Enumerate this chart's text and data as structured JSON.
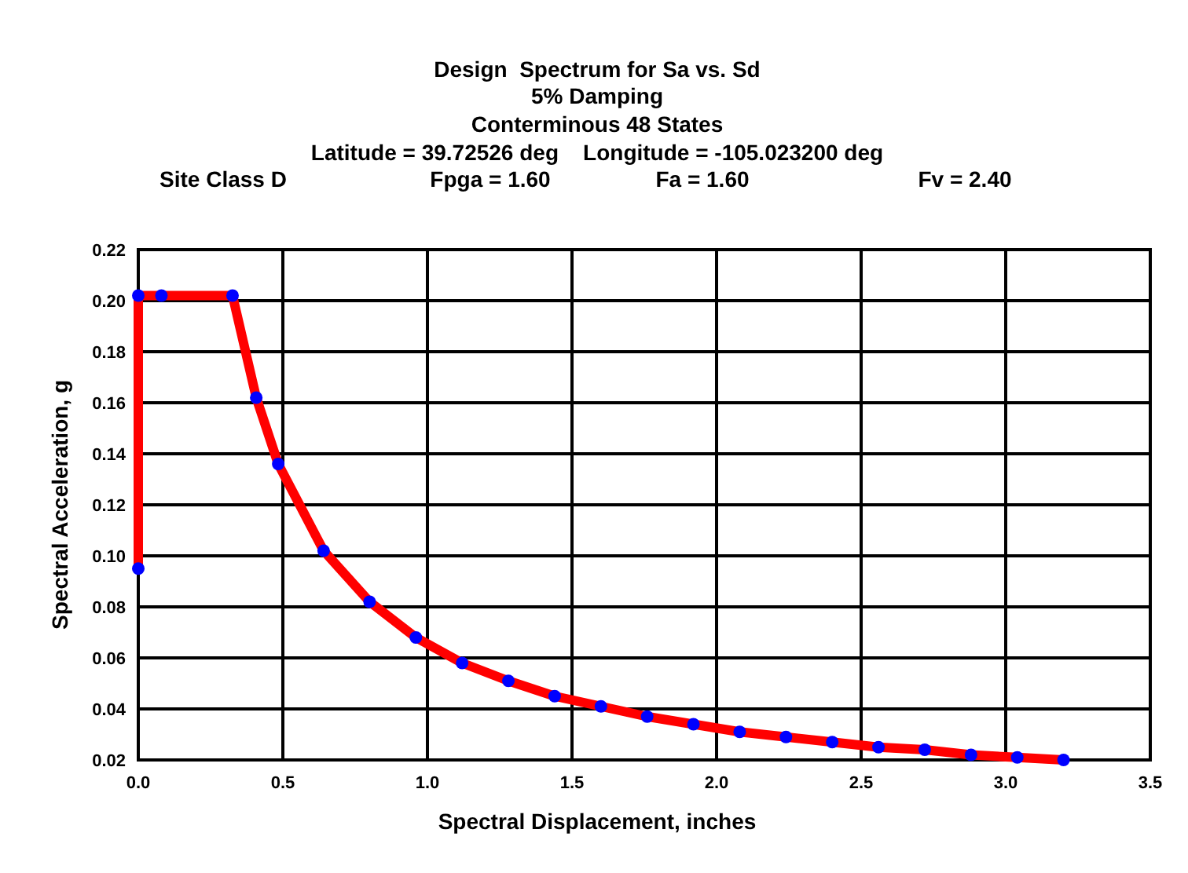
{
  "chart_data": {
    "type": "line",
    "title": "Design  Spectrum for Sa vs. Sd",
    "subtitle": "5% Damping",
    "annotations": [
      "Conterminous 48 States",
      "Latitude = 39.72526 deg    Longitude = -105.023200 deg",
      "Site Class D",
      "Fpga = 1.60",
      "Fa = 1.60",
      "Fv = 2.40"
    ],
    "xlabel": "Spectral Displacement, inches",
    "ylabel": "Spectral Acceleration, g",
    "x": [
      0,
      0,
      0.08,
      0.326,
      0.408,
      0.484,
      0.641,
      0.8,
      0.96,
      1.12,
      1.28,
      1.44,
      1.6,
      1.76,
      1.92,
      2.08,
      2.24,
      2.4,
      2.56,
      2.72,
      2.88,
      3.04,
      3.2
    ],
    "series": [
      {
        "color": "#ff0000",
        "marker": "none",
        "values": [
          0.095,
          0.202,
          0.202,
          0.202,
          0.162,
          0.136,
          0.102,
          0.082,
          0.068,
          0.058,
          0.051,
          0.045,
          0.041,
          0.037,
          0.034,
          0.031,
          0.029,
          0.027,
          0.025,
          0.024,
          0.022,
          0.021,
          0.02
        ]
      },
      {
        "type": "scatter",
        "color": "#0000ff",
        "marker": "circle",
        "values": [
          0.095,
          0.202,
          0.202,
          0.202,
          0.162,
          0.136,
          0.102,
          0.082,
          0.068,
          0.058,
          0.051,
          0.045,
          0.041,
          0.037,
          0.034,
          0.031,
          0.029,
          0.027,
          0.025,
          0.024,
          0.022,
          0.021,
          0.02
        ]
      }
    ],
    "xlim": [
      0,
      3.5
    ],
    "xticks": [
      {
        "value": 0,
        "label": "0.0"
      },
      {
        "value": 0.5,
        "label": "0.5"
      },
      {
        "value": 1,
        "label": "1.0"
      },
      {
        "value": 1.5,
        "label": "1.5"
      },
      {
        "value": 2,
        "label": "2.0"
      },
      {
        "value": 2.5,
        "label": "2.5"
      },
      {
        "value": 3,
        "label": "3.0"
      },
      {
        "value": 3.5,
        "label": "3.5"
      }
    ],
    "ylim": [
      0.02,
      0.22
    ],
    "yticks": [
      {
        "value": 0.02,
        "label": "0.02"
      },
      {
        "value": 0.04,
        "label": "0.04"
      },
      {
        "value": 0.06,
        "label": "0.06"
      },
      {
        "value": 0.08,
        "label": "0.08"
      },
      {
        "value": 0.1,
        "label": "0.10"
      },
      {
        "value": 0.12,
        "label": "0.12"
      },
      {
        "value": 0.14,
        "label": "0.14"
      },
      {
        "value": 0.16,
        "label": "0.16"
      },
      {
        "value": 0.18,
        "label": "0.18"
      },
      {
        "value": 0.2,
        "label": "0.20"
      },
      {
        "value": 0.22,
        "label": "0.22"
      }
    ],
    "grid": true
  }
}
